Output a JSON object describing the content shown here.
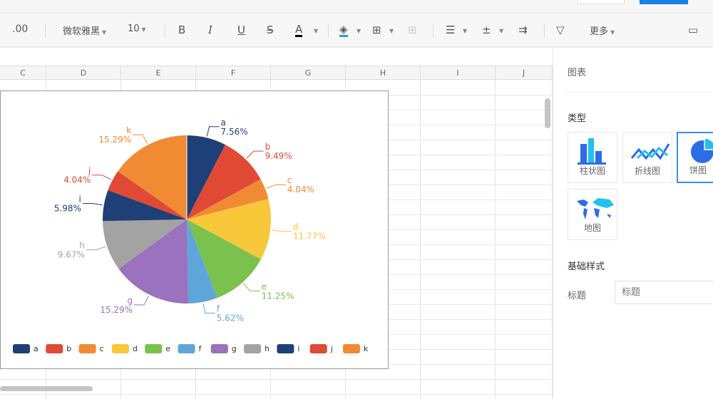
{
  "toolbar": {
    "decimal": ".00",
    "font": "微软雅黑",
    "size": "10",
    "bold": "B",
    "italic": "I",
    "underline": "U",
    "strike": "S",
    "fontcolor": "A",
    "more": "更多"
  },
  "columns": [
    "C",
    "D",
    "E",
    "F",
    "G",
    "H",
    "I",
    "J"
  ],
  "panel": {
    "header": "图表",
    "type_label": "类型",
    "types": [
      {
        "label": "柱状图"
      },
      {
        "label": "折线图"
      },
      {
        "label": "饼图",
        "selected": true
      },
      {
        "label": "地图"
      }
    ],
    "style_label": "基础样式",
    "title_label": "标题",
    "title_placeholder": "标题"
  },
  "chart_data": {
    "type": "pie",
    "categories": [
      "a",
      "b",
      "c",
      "d",
      "e",
      "f",
      "g",
      "h",
      "i",
      "j",
      "k"
    ],
    "values": [
      7.56,
      9.49,
      4.04,
      11.77,
      11.25,
      5.62,
      15.29,
      9.67,
      5.98,
      4.04,
      15.29
    ],
    "labels": [
      "7.56%",
      "9.49%",
      "4.04%",
      "11.77%",
      "11.25%",
      "5.62%",
      "15.29%",
      "9.67%",
      "5.98%",
      "4.04%",
      "15.29%"
    ],
    "colors": [
      "#1f3f77",
      "#e04a35",
      "#f08b33",
      "#f9c73a",
      "#7ac14e",
      "#5ea6da",
      "#9b72bd",
      "#a3a3a3",
      "#1f3f77",
      "#e04a35",
      "#f08b33"
    ],
    "legend": "bottom"
  }
}
